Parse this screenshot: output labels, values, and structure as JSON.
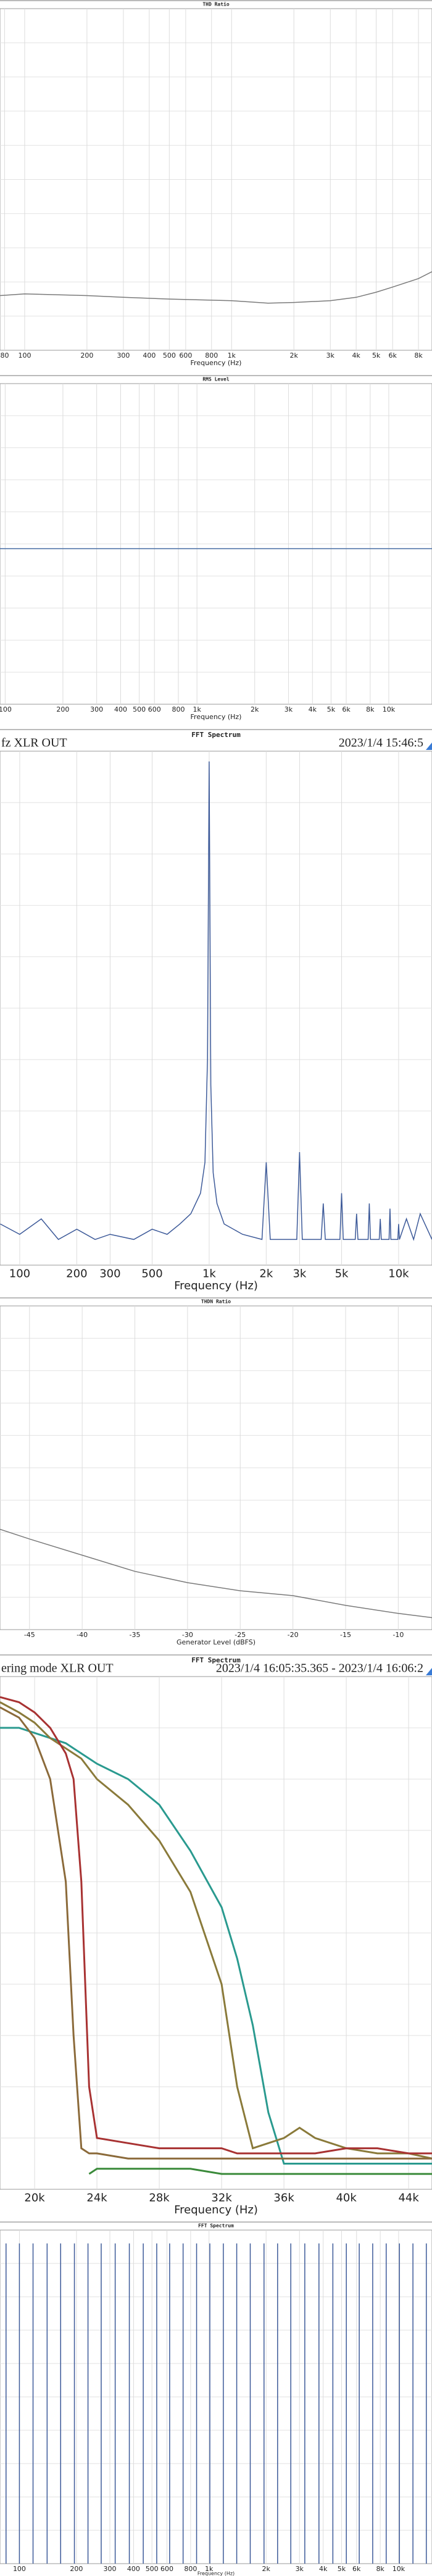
{
  "chart_data": [
    {
      "type": "line",
      "title": "THD Ratio",
      "x_label": "Frequency (Hz)",
      "xscale": "log",
      "xlim": [
        76,
        9300
      ],
      "ylim": [
        0,
        100
      ],
      "xticks": [
        80,
        100,
        200,
        300,
        400,
        500,
        600,
        800,
        {
          "value": 1000,
          "label": "1k"
        },
        {
          "value": 2000,
          "label": "2k"
        },
        {
          "value": 3000,
          "label": "3k"
        },
        {
          "value": 4000,
          "label": "4k"
        },
        {
          "value": 5000,
          "label": "5k"
        },
        {
          "value": 6000,
          "label": "6k"
        },
        {
          "value": 8000,
          "label": "8k"
        }
      ],
      "x": [
        76,
        100,
        200,
        300,
        500,
        1000,
        1500,
        2000,
        3000,
        4000,
        5000,
        6000,
        8000,
        9300
      ],
      "series": [
        {
          "color": "#7a7a7a",
          "values": [
            16,
            16.5,
            16,
            15.5,
            15,
            14.5,
            13.8,
            14,
            14.5,
            15.5,
            17,
            18.5,
            21,
            23
          ]
        }
      ]
    },
    {
      "type": "line",
      "title": "RMS Level",
      "x_label": "Frequency (Hz)",
      "xscale": "log",
      "xlim": [
        94,
        16800
      ],
      "ylim": [
        0,
        100
      ],
      "xticks": [
        100,
        200,
        300,
        400,
        500,
        600,
        800,
        {
          "value": 1000,
          "label": "1k"
        },
        {
          "value": 2000,
          "label": "2k"
        },
        {
          "value": 3000,
          "label": "3k"
        },
        {
          "value": 4000,
          "label": "4k"
        },
        {
          "value": 5000,
          "label": "5k"
        },
        {
          "value": 6000,
          "label": "6k"
        },
        {
          "value": 8000,
          "label": "8k"
        },
        {
          "value": 10000,
          "label": "10k"
        }
      ],
      "x": [
        94,
        1000,
        16800
      ],
      "series": [
        {
          "color": "#4a6fa5",
          "values": [
            48.5,
            48.5,
            48.5
          ]
        }
      ]
    },
    {
      "type": "line",
      "title": "FFT Spectrum",
      "header_left": "fz XLR OUT",
      "header_right": "2023/1/4 15:46:5",
      "x_label": "Frequency (Hz)",
      "xscale": "log",
      "xlim": [
        78.7,
        15000
      ],
      "ylim": [
        0,
        100
      ],
      "xticks": [
        100,
        200,
        300,
        500,
        {
          "value": 1000,
          "label": "1k"
        },
        {
          "value": 2000,
          "label": "2k"
        },
        {
          "value": 3000,
          "label": "3k"
        },
        {
          "value": 5000,
          "label": "5k"
        },
        {
          "value": 10000,
          "label": "10k"
        }
      ],
      "x": [
        79,
        100,
        130,
        160,
        200,
        250,
        300,
        400,
        500,
        600,
        700,
        800,
        900,
        950,
        980,
        1000,
        1020,
        1050,
        1100,
        1200,
        1500,
        1900,
        2000,
        2100,
        2900,
        3000,
        3100,
        3900,
        4000,
        4100,
        4900,
        5000,
        5100,
        5900,
        6000,
        6100,
        6900,
        7000,
        7100,
        7900,
        8000,
        8100,
        8900,
        9000,
        9100,
        9900,
        10000,
        10100,
        11000,
        12000,
        13000,
        15000
      ],
      "series": [
        {
          "color": "#3d5a99",
          "values": [
            8,
            6,
            9,
            5,
            7,
            5,
            6,
            5,
            7,
            6,
            8,
            10,
            14,
            20,
            40,
            98,
            35,
            18,
            12,
            8,
            6,
            5,
            20,
            5,
            5,
            22,
            5,
            5,
            12,
            5,
            5,
            14,
            5,
            5,
            10,
            5,
            5,
            12,
            5,
            5,
            9,
            5,
            5,
            11,
            5,
            5,
            8,
            5,
            9,
            5,
            10,
            5
          ]
        }
      ]
    },
    {
      "type": "line",
      "title": "THDN Ratio",
      "x_label": "Generator Level (dBFS)",
      "xscale": "linear",
      "xlim": [
        -47.8,
        -6.8
      ],
      "ylim": [
        0,
        100
      ],
      "xticks": [
        -45,
        -40,
        -35,
        -30,
        -25,
        -20,
        -15,
        -10
      ],
      "x": [
        -47.8,
        -45,
        -40,
        -35,
        -30,
        -25,
        -20,
        -15,
        -10,
        -6.8
      ],
      "series": [
        {
          "color": "#7a7a7a",
          "values": [
            31,
            28,
            23,
            18,
            14.5,
            12,
            10.5,
            7.5,
            5,
            3.7
          ]
        }
      ]
    },
    {
      "type": "line",
      "title": "FFT Spectrum",
      "header_left": "ering mode XLR OUT",
      "header_right": "2023/1/4 16:05:35.365 - 2023/1/4 16:06:2",
      "x_label": "Frequency (Hz)",
      "xscale": "linear",
      "xlim": [
        17780,
        45500
      ],
      "ylim": [
        0,
        100
      ],
      "xticks": [
        {
          "value": 20000,
          "label": "20k"
        },
        {
          "value": 24000,
          "label": "24k"
        },
        {
          "value": 28000,
          "label": "28k"
        },
        {
          "value": 32000,
          "label": "32k"
        },
        {
          "value": 36000,
          "label": "36k"
        },
        {
          "value": 40000,
          "label": "40k"
        },
        {
          "value": 44000,
          "label": "44k"
        }
      ],
      "x": [
        17780,
        19000,
        20000,
        21000,
        22000,
        22500,
        23000,
        23500,
        24000,
        26000,
        28000,
        30000,
        32000,
        33000,
        34000,
        35000,
        36000,
        37000,
        38000,
        40000,
        42000,
        44000,
        45500
      ],
      "series": [
        {
          "color": "#2a9a8f",
          "values": [
            90,
            90,
            89,
            88,
            87,
            86,
            85,
            84,
            83,
            80,
            75,
            66,
            55,
            45,
            32,
            15,
            5,
            5,
            5,
            5,
            5,
            5,
            5
          ]
        },
        {
          "color": "#8a7a3a",
          "values": [
            95,
            93,
            91,
            88,
            86,
            85,
            84,
            82,
            80,
            75,
            68,
            58,
            40,
            20,
            8,
            9,
            10,
            12,
            10,
            8,
            7,
            7,
            6
          ]
        },
        {
          "color": "#a83232",
          "values": [
            96,
            95,
            93,
            90,
            85,
            80,
            60,
            20,
            10,
            9,
            8,
            8,
            8,
            7,
            7,
            7,
            7,
            7,
            7,
            8,
            8,
            7,
            7
          ]
        },
        {
          "color": "#8b6a3a",
          "values": [
            94,
            92,
            88,
            80,
            60,
            30,
            8,
            7,
            7,
            6,
            6,
            6,
            6,
            6,
            6,
            6,
            6,
            6,
            6,
            6,
            6,
            6,
            6
          ]
        },
        {
          "color": "#3a8a3a",
          "values": [
            null,
            null,
            null,
            null,
            null,
            null,
            null,
            3,
            4,
            4,
            4,
            4,
            3,
            3,
            3,
            3,
            3,
            3,
            3,
            3,
            3,
            3,
            3
          ]
        }
      ]
    },
    {
      "type": "stem",
      "title": "FFT Spectrum",
      "x_label": "Frequency (Hz)",
      "xscale": "log",
      "xlim": [
        79,
        15000
      ],
      "ylim": [
        0,
        100
      ],
      "xticks": [
        100,
        200,
        300,
        400,
        500,
        600,
        800,
        {
          "value": 1000,
          "label": "1k"
        },
        {
          "value": 2000,
          "label": "2k"
        },
        {
          "value": 3000,
          "label": "3k"
        },
        {
          "value": 4000,
          "label": "4k"
        },
        {
          "value": 5000,
          "label": "5k"
        },
        {
          "value": 6000,
          "label": "6k"
        },
        {
          "value": 8000,
          "label": "8k"
        },
        {
          "value": 10000,
          "label": "10k"
        }
      ],
      "x": [
        85,
        100,
        118,
        140,
        165,
        195,
        230,
        270,
        320,
        380,
        450,
        530,
        620,
        730,
        860,
        1010,
        1190,
        1400,
        1650,
        1950,
        2300,
        2700,
        3200,
        3800,
        4500,
        5300,
        6200,
        7300,
        8600,
        10100,
        11900,
        14000
      ],
      "color": "#3d5a99",
      "values": [
        96,
        96,
        96,
        96,
        96,
        96,
        96,
        96,
        96,
        96,
        96,
        96,
        96,
        96,
        96,
        96,
        96,
        96,
        96,
        96,
        96,
        96,
        96,
        96,
        96,
        96,
        96,
        96,
        96,
        96,
        96,
        96
      ]
    }
  ]
}
